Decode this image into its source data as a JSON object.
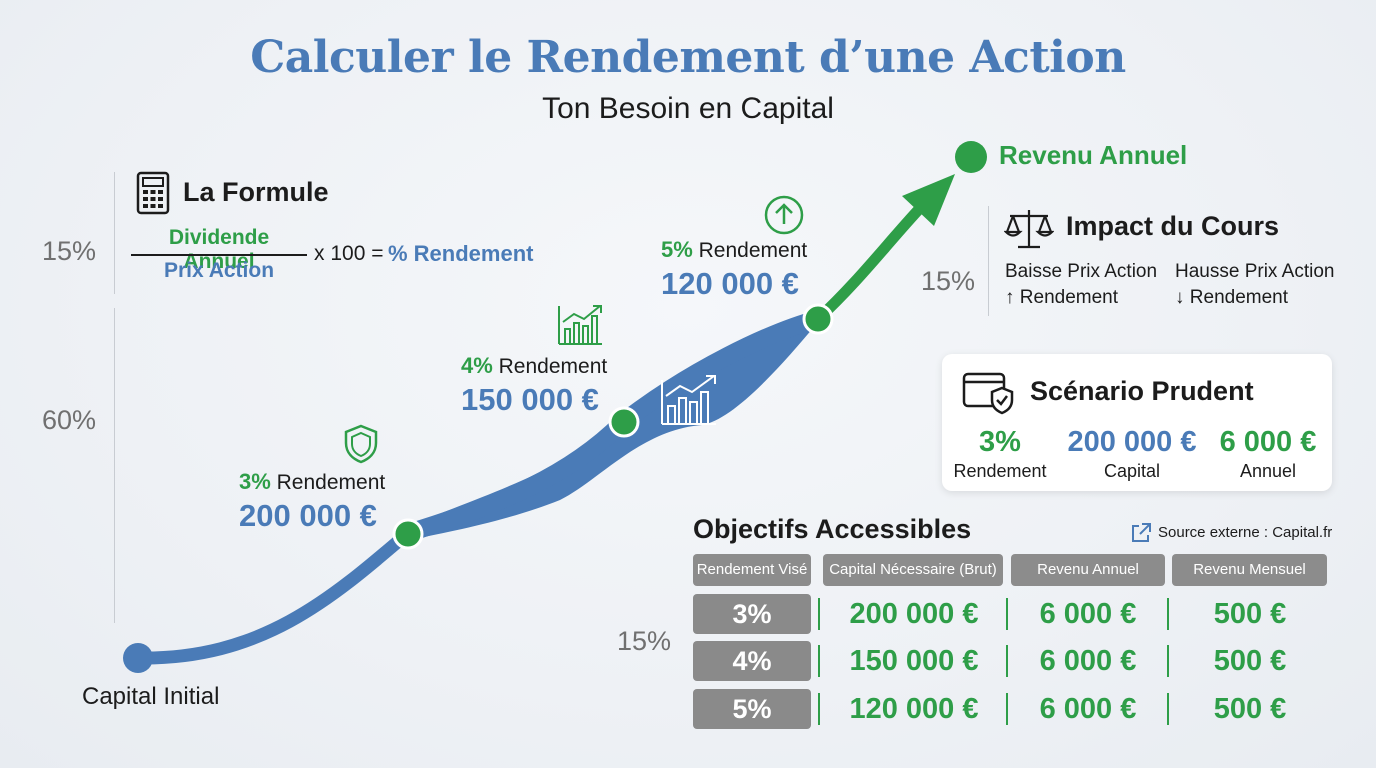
{
  "header": {
    "title": "Calculer le Rendement d’une Action",
    "subtitle": "Ton Besoin en Capital"
  },
  "side_percents": {
    "left_top": "15%",
    "left_mid": "60%",
    "right_impact": "15%",
    "table_left": "15%"
  },
  "formula": {
    "title": "La Formule",
    "numerator": "Dividende Annuel",
    "denominator": "Prix Action",
    "suffix": "x 100 =",
    "result": "% Rendement"
  },
  "curve": {
    "start_label": "Capital Initial",
    "end_label": "Revenu Annuel",
    "steps": [
      {
        "rate": "3%",
        "word": "Rendement",
        "amount": "200 000 €",
        "icon": "shield-icon"
      },
      {
        "rate": "4%",
        "word": "Rendement",
        "amount": "150 000 €",
        "icon": "growth-chart-icon"
      },
      {
        "rate": "5%",
        "word": "Rendement",
        "amount": "120 000 €",
        "icon": "up-arrow-circle-icon"
      }
    ]
  },
  "impact": {
    "title": "Impact du Cours",
    "left_line1": "Baisse Prix Action",
    "left_line2": "↑ Rendement",
    "right_line1": "Hausse Prix Action",
    "right_line2": "↓ Rendement"
  },
  "scenario": {
    "title": "Scénario Prudent",
    "rate": "3%",
    "rate_label": "Rendement",
    "capital": "200 000 €",
    "capital_label": "Capital",
    "annual": "6 000 €",
    "annual_label": "Annuel"
  },
  "objectives": {
    "title": "Objectifs Accessibles",
    "source": "Source externe : Capital.fr",
    "headers": [
      "Rendement Visé",
      "Capital Nécessaire (Brut)",
      "Revenu Annuel",
      "Revenu Mensuel"
    ],
    "rows": [
      {
        "rate": "3%",
        "capital": "200 000 €",
        "annual": "6 000 €",
        "monthly": "500 €"
      },
      {
        "rate": "4%",
        "capital": "150 000 €",
        "annual": "6 000 €",
        "monthly": "500 €"
      },
      {
        "rate": "5%",
        "capital": "120 000 €",
        "annual": "6 000 €",
        "monthly": "500 €"
      }
    ]
  },
  "colors": {
    "blue": "#4a7bb7",
    "green": "#2e9e48",
    "gray_cell": "#8a8a8a"
  }
}
